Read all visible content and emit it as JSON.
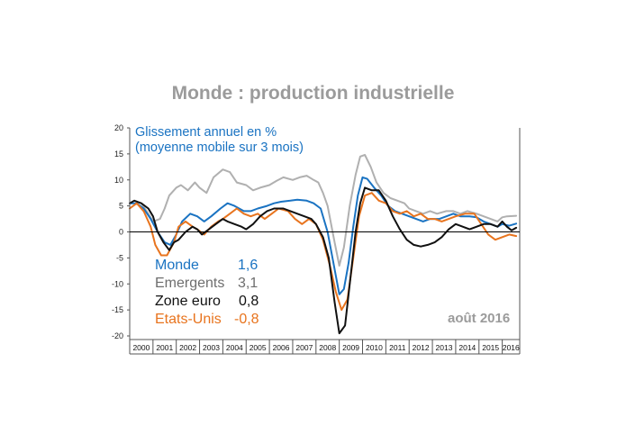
{
  "title": "Monde : production industrielle",
  "subtitle_line1": "Glissement annuel en %",
  "subtitle_line2": "(moyenne mobile sur 3 mois)",
  "date_label": "août 2016",
  "colors": {
    "monde": "#1a73c2",
    "emergents": "#b0b0b0",
    "zone_euro": "#111111",
    "etats_unis": "#e8741e",
    "subtitle": "#1a73c2",
    "title": "#9b9b9b"
  },
  "legend": [
    {
      "name": "Monde",
      "value": "1,6",
      "color": "#1a73c2"
    },
    {
      "name": "Emergents",
      "value": "3,1",
      "color": "#6e6e6e"
    },
    {
      "name": "Zone euro",
      "value": "0,8",
      "color": "#111111"
    },
    {
      "name": "Etats-Unis",
      "value": "-0,8",
      "color": "#e8741e"
    }
  ],
  "chart_data": {
    "type": "line",
    "title": "Monde : production industrielle",
    "ylabel": "Glissement annuel en % (moyenne mobile sur 3 mois)",
    "ylim": [
      -20,
      20
    ],
    "yticks": [
      20,
      15,
      10,
      5,
      0,
      -5,
      -10,
      -15,
      -20
    ],
    "xlim": [
      2000.0,
      2016.75
    ],
    "xticks": [
      "2000",
      "2001",
      "2002",
      "2003",
      "2004",
      "2005",
      "2006",
      "2007",
      "2008",
      "2009",
      "2010",
      "2011",
      "2012",
      "2013",
      "2014",
      "2015",
      "2016"
    ],
    "grid": false,
    "series": [
      {
        "name": "Emergents",
        "color": "#b0b0b0",
        "points": [
          [
            2000.5,
            5.5
          ],
          [
            2000.8,
            3.5
          ],
          [
            2001.0,
            2.0
          ],
          [
            2001.3,
            2.5
          ],
          [
            2001.5,
            4.5
          ],
          [
            2001.7,
            7.0
          ],
          [
            2002.0,
            8.5
          ],
          [
            2002.2,
            9.0
          ],
          [
            2002.5,
            8.0
          ],
          [
            2002.8,
            9.5
          ],
          [
            2003.0,
            8.5
          ],
          [
            2003.3,
            7.5
          ],
          [
            2003.6,
            10.5
          ],
          [
            2004.0,
            12.0
          ],
          [
            2004.3,
            11.5
          ],
          [
            2004.6,
            9.5
          ],
          [
            2005.0,
            9.0
          ],
          [
            2005.3,
            8.0
          ],
          [
            2005.6,
            8.5
          ],
          [
            2006.0,
            9.0
          ],
          [
            2006.3,
            9.8
          ],
          [
            2006.6,
            10.5
          ],
          [
            2007.0,
            10.0
          ],
          [
            2007.3,
            10.5
          ],
          [
            2007.6,
            10.8
          ],
          [
            2007.9,
            10.0
          ],
          [
            2008.1,
            9.5
          ],
          [
            2008.3,
            7.5
          ],
          [
            2008.5,
            5.0
          ],
          [
            2008.8,
            -2.0
          ],
          [
            2009.0,
            -6.5
          ],
          [
            2009.2,
            -3.0
          ],
          [
            2009.45,
            5.0
          ],
          [
            2009.7,
            11.0
          ],
          [
            2009.9,
            14.5
          ],
          [
            2010.1,
            14.8
          ],
          [
            2010.35,
            12.5
          ],
          [
            2010.6,
            9.5
          ],
          [
            2010.9,
            7.5
          ],
          [
            2011.2,
            6.5
          ],
          [
            2011.5,
            6.0
          ],
          [
            2011.8,
            5.5
          ],
          [
            2012.0,
            4.5
          ],
          [
            2012.3,
            4.0
          ],
          [
            2012.6,
            3.5
          ],
          [
            2012.9,
            4.0
          ],
          [
            2013.2,
            3.5
          ],
          [
            2013.6,
            4.0
          ],
          [
            2013.9,
            4.0
          ],
          [
            2014.2,
            3.5
          ],
          [
            2014.5,
            4.0
          ],
          [
            2014.9,
            3.5
          ],
          [
            2015.2,
            3.0
          ],
          [
            2015.5,
            2.5
          ],
          [
            2015.8,
            2.0
          ],
          [
            2016.0,
            2.8
          ],
          [
            2016.2,
            3.0
          ],
          [
            2016.6,
            3.1
          ]
        ]
      },
      {
        "name": "Monde",
        "color": "#1a73c2",
        "points": [
          [
            2000.0,
            5.5
          ],
          [
            2000.3,
            5.5
          ],
          [
            2000.6,
            4.5
          ],
          [
            2000.9,
            2.5
          ],
          [
            2001.2,
            0.0
          ],
          [
            2001.5,
            -2.0
          ],
          [
            2001.75,
            -2.5
          ],
          [
            2002.0,
            -0.5
          ],
          [
            2002.25,
            2.0
          ],
          [
            2002.6,
            3.5
          ],
          [
            2002.9,
            3.0
          ],
          [
            2003.2,
            2.0
          ],
          [
            2003.5,
            3.0
          ],
          [
            2003.9,
            4.5
          ],
          [
            2004.2,
            5.5
          ],
          [
            2004.5,
            5.0
          ],
          [
            2004.9,
            4.0
          ],
          [
            2005.2,
            4.0
          ],
          [
            2005.5,
            4.5
          ],
          [
            2005.9,
            5.0
          ],
          [
            2006.2,
            5.5
          ],
          [
            2006.5,
            5.8
          ],
          [
            2006.9,
            6.0
          ],
          [
            2007.2,
            6.2
          ],
          [
            2007.6,
            6.0
          ],
          [
            2007.9,
            5.5
          ],
          [
            2008.2,
            4.5
          ],
          [
            2008.5,
            0.0
          ],
          [
            2008.75,
            -6.0
          ],
          [
            2009.0,
            -12.0
          ],
          [
            2009.2,
            -11.0
          ],
          [
            2009.4,
            -6.0
          ],
          [
            2009.6,
            1.0
          ],
          [
            2009.8,
            7.0
          ],
          [
            2010.0,
            10.5
          ],
          [
            2010.2,
            10.2
          ],
          [
            2010.5,
            8.5
          ],
          [
            2010.8,
            7.0
          ],
          [
            2011.1,
            5.0
          ],
          [
            2011.4,
            4.0
          ],
          [
            2011.7,
            3.5
          ],
          [
            2012.0,
            3.0
          ],
          [
            2012.3,
            2.5
          ],
          [
            2012.6,
            2.0
          ],
          [
            2012.9,
            2.5
          ],
          [
            2013.3,
            2.5
          ],
          [
            2013.6,
            3.0
          ],
          [
            2013.9,
            3.5
          ],
          [
            2014.2,
            3.0
          ],
          [
            2014.6,
            3.0
          ],
          [
            2014.9,
            2.8
          ],
          [
            2015.2,
            2.0
          ],
          [
            2015.5,
            1.5
          ],
          [
            2015.8,
            1.0
          ],
          [
            2016.0,
            1.5
          ],
          [
            2016.3,
            1.2
          ],
          [
            2016.6,
            1.6
          ]
        ]
      },
      {
        "name": "Etats-Unis",
        "color": "#e8741e",
        "points": [
          [
            2000.0,
            4.5
          ],
          [
            2000.3,
            5.5
          ],
          [
            2000.6,
            4.0
          ],
          [
            2000.9,
            1.0
          ],
          [
            2001.1,
            -2.5
          ],
          [
            2001.35,
            -4.5
          ],
          [
            2001.6,
            -4.5
          ],
          [
            2001.9,
            -2.0
          ],
          [
            2002.1,
            1.0
          ],
          [
            2002.4,
            2.0
          ],
          [
            2002.7,
            1.0
          ],
          [
            2002.9,
            0.5
          ],
          [
            2003.2,
            -0.5
          ],
          [
            2003.5,
            1.0
          ],
          [
            2003.8,
            2.0
          ],
          [
            2004.0,
            2.5
          ],
          [
            2004.3,
            3.5
          ],
          [
            2004.6,
            4.5
          ],
          [
            2004.9,
            3.5
          ],
          [
            2005.2,
            3.0
          ],
          [
            2005.5,
            3.5
          ],
          [
            2005.8,
            2.5
          ],
          [
            2006.1,
            3.5
          ],
          [
            2006.4,
            4.5
          ],
          [
            2006.8,
            4.0
          ],
          [
            2007.1,
            2.5
          ],
          [
            2007.4,
            1.5
          ],
          [
            2007.7,
            2.5
          ],
          [
            2008.0,
            1.5
          ],
          [
            2008.3,
            -1.5
          ],
          [
            2008.6,
            -6.5
          ],
          [
            2008.85,
            -11.5
          ],
          [
            2009.1,
            -15.0
          ],
          [
            2009.35,
            -13.0
          ],
          [
            2009.6,
            -5.0
          ],
          [
            2009.85,
            3.0
          ],
          [
            2010.1,
            7.0
          ],
          [
            2010.4,
            7.5
          ],
          [
            2010.7,
            6.0
          ],
          [
            2011.0,
            5.5
          ],
          [
            2011.3,
            4.0
          ],
          [
            2011.6,
            3.5
          ],
          [
            2011.9,
            4.0
          ],
          [
            2012.2,
            3.0
          ],
          [
            2012.5,
            3.5
          ],
          [
            2012.8,
            2.5
          ],
          [
            2013.1,
            2.5
          ],
          [
            2013.4,
            2.0
          ],
          [
            2013.7,
            2.5
          ],
          [
            2014.0,
            3.0
          ],
          [
            2014.4,
            3.5
          ],
          [
            2014.8,
            3.5
          ],
          [
            2015.1,
            1.5
          ],
          [
            2015.4,
            -0.5
          ],
          [
            2015.7,
            -1.5
          ],
          [
            2016.0,
            -1.0
          ],
          [
            2016.3,
            -0.5
          ],
          [
            2016.6,
            -0.8
          ]
        ]
      },
      {
        "name": "Zone euro",
        "color": "#111111",
        "points": [
          [
            2000.0,
            5.5
          ],
          [
            2000.2,
            6.0
          ],
          [
            2000.5,
            5.5
          ],
          [
            2000.8,
            4.5
          ],
          [
            2001.0,
            3.0
          ],
          [
            2001.2,
            0.0
          ],
          [
            2001.45,
            -2.0
          ],
          [
            2001.7,
            -3.5
          ],
          [
            2001.9,
            -2.0
          ],
          [
            2002.1,
            -1.5
          ],
          [
            2002.4,
            0.0
          ],
          [
            2002.7,
            1.0
          ],
          [
            2002.9,
            0.5
          ],
          [
            2003.1,
            -0.5
          ],
          [
            2003.4,
            0.5
          ],
          [
            2003.7,
            1.5
          ],
          [
            2004.0,
            2.5
          ],
          [
            2004.2,
            2.0
          ],
          [
            2004.5,
            1.5
          ],
          [
            2004.8,
            1.0
          ],
          [
            2005.0,
            0.5
          ],
          [
            2005.3,
            1.5
          ],
          [
            2005.6,
            3.0
          ],
          [
            2005.9,
            4.0
          ],
          [
            2006.2,
            4.5
          ],
          [
            2006.6,
            4.5
          ],
          [
            2006.9,
            4.0
          ],
          [
            2007.2,
            3.5
          ],
          [
            2007.5,
            3.0
          ],
          [
            2007.8,
            2.5
          ],
          [
            2008.0,
            1.5
          ],
          [
            2008.3,
            -1.0
          ],
          [
            2008.55,
            -5.0
          ],
          [
            2008.8,
            -13.5
          ],
          [
            2009.0,
            -19.5
          ],
          [
            2009.25,
            -18.0
          ],
          [
            2009.45,
            -10.0
          ],
          [
            2009.7,
            0.0
          ],
          [
            2009.9,
            5.5
          ],
          [
            2010.1,
            8.5
          ],
          [
            2010.4,
            8.0
          ],
          [
            2010.7,
            8.0
          ],
          [
            2011.0,
            6.0
          ],
          [
            2011.3,
            3.0
          ],
          [
            2011.6,
            0.5
          ],
          [
            2011.9,
            -1.5
          ],
          [
            2012.2,
            -2.5
          ],
          [
            2012.5,
            -2.8
          ],
          [
            2012.8,
            -2.5
          ],
          [
            2013.1,
            -2.0
          ],
          [
            2013.4,
            -1.0
          ],
          [
            2013.7,
            0.5
          ],
          [
            2014.0,
            1.5
          ],
          [
            2014.3,
            1.0
          ],
          [
            2014.6,
            0.5
          ],
          [
            2014.9,
            1.0
          ],
          [
            2015.2,
            1.5
          ],
          [
            2015.5,
            1.5
          ],
          [
            2015.8,
            1.0
          ],
          [
            2016.0,
            2.0
          ],
          [
            2016.2,
            1.0
          ],
          [
            2016.4,
            0.3
          ],
          [
            2016.6,
            0.8
          ]
        ]
      }
    ]
  }
}
